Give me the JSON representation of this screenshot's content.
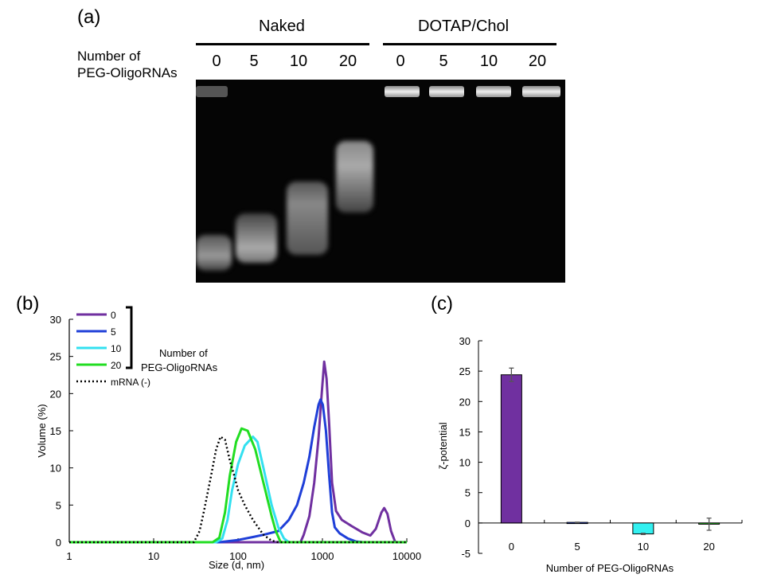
{
  "panel_a": {
    "label": "(a)",
    "group_naked": "Naked",
    "group_dotap": "DOTAP/Chol",
    "row_label_line1": "Number of",
    "row_label_line2": "PEG-OligoRNAs",
    "lanes": [
      "0",
      "5",
      "10",
      "20",
      "0",
      "5",
      "10",
      "20"
    ]
  },
  "chart_data": [
    {
      "panel": "(b)",
      "type": "line",
      "xlabel": "Size (d, nm)",
      "ylabel": "Volume (%)",
      "xscale": "log",
      "xlim": [
        1,
        10000
      ],
      "ylim": [
        0,
        30
      ],
      "xticks": [
        "1",
        "10",
        "100",
        "1000",
        "10000"
      ],
      "yticks": [
        "0",
        "5",
        "10",
        "15",
        "20",
        "25",
        "30"
      ],
      "legend_title_line1": "Number of",
      "legend_title_line2": "PEG-OligoRNAs",
      "legend_position": "top-left",
      "series": [
        {
          "name": "0",
          "color": "#7030a0",
          "style": "solid",
          "points": [
            [
              1,
              0
            ],
            [
              550,
              0
            ],
            [
              600,
              1
            ],
            [
              700,
              3.5
            ],
            [
              800,
              8
            ],
            [
              900,
              14
            ],
            [
              980,
              20
            ],
            [
              1050,
              24.3
            ],
            [
              1120,
              22
            ],
            [
              1200,
              16
            ],
            [
              1300,
              8
            ],
            [
              1450,
              4.2
            ],
            [
              1700,
              3
            ],
            [
              2200,
              2.2
            ],
            [
              3000,
              1.3
            ],
            [
              3700,
              0.9
            ],
            [
              4300,
              1.8
            ],
            [
              5000,
              4
            ],
            [
              5400,
              4.6
            ],
            [
              5900,
              3.8
            ],
            [
              6500,
              1.5
            ],
            [
              7300,
              0
            ],
            [
              10000,
              0
            ]
          ]
        },
        {
          "name": "5",
          "color": "#1f3fd8",
          "style": "solid",
          "points": [
            [
              1,
              0
            ],
            [
              60,
              0
            ],
            [
              100,
              0.3
            ],
            [
              150,
              0.7
            ],
            [
              200,
              1
            ],
            [
              300,
              1.5
            ],
            [
              400,
              3
            ],
            [
              500,
              5
            ],
            [
              600,
              8
            ],
            [
              700,
              11.5
            ],
            [
              800,
              15.5
            ],
            [
              900,
              18.5
            ],
            [
              950,
              19.2
            ],
            [
              1010,
              18.5
            ],
            [
              1100,
              15
            ],
            [
              1200,
              9
            ],
            [
              1300,
              4
            ],
            [
              1400,
              2
            ],
            [
              1600,
              1.2
            ],
            [
              2000,
              0.5
            ],
            [
              2500,
              0.1
            ],
            [
              3000,
              0
            ],
            [
              10000,
              0
            ]
          ]
        },
        {
          "name": "10",
          "color": "#33e0f0",
          "style": "solid",
          "points": [
            [
              1,
              0
            ],
            [
              55,
              0
            ],
            [
              65,
              0.5
            ],
            [
              75,
              3
            ],
            [
              85,
              7
            ],
            [
              100,
              10.5
            ],
            [
              120,
              13
            ],
            [
              150,
              14.2
            ],
            [
              170,
              13.5
            ],
            [
              200,
              10
            ],
            [
              250,
              5
            ],
            [
              300,
              2
            ],
            [
              350,
              0.5
            ],
            [
              400,
              0
            ],
            [
              10000,
              0
            ]
          ]
        },
        {
          "name": "20",
          "color": "#22dd22",
          "style": "solid",
          "points": [
            [
              1,
              0
            ],
            [
              50,
              0
            ],
            [
              60,
              0.6
            ],
            [
              70,
              4
            ],
            [
              80,
              9
            ],
            [
              95,
              13.5
            ],
            [
              110,
              15.3
            ],
            [
              130,
              15
            ],
            [
              160,
              12.5
            ],
            [
              200,
              8
            ],
            [
              250,
              3.5
            ],
            [
              280,
              1.5
            ],
            [
              320,
              0
            ],
            [
              10000,
              0
            ]
          ]
        },
        {
          "name": "mRNA (-)",
          "color": "#000000",
          "style": "dotted",
          "points": [
            [
              1,
              0
            ],
            [
              30,
              0
            ],
            [
              35,
              1.5
            ],
            [
              40,
              4.5
            ],
            [
              48,
              9
            ],
            [
              55,
              12.5
            ],
            [
              62,
              14.2
            ],
            [
              70,
              13.8
            ],
            [
              80,
              11
            ],
            [
              90,
              9
            ],
            [
              100,
              7
            ],
            [
              120,
              5
            ],
            [
              150,
              3
            ],
            [
              200,
              1
            ],
            [
              250,
              0.2
            ],
            [
              300,
              0
            ],
            [
              10000,
              0
            ]
          ]
        }
      ]
    },
    {
      "panel": "(c)",
      "type": "bar",
      "xlabel": "Number of PEG-OligoRNAs",
      "ylabel": "ζ-potential",
      "ylim": [
        -5,
        30
      ],
      "yticks": [
        "-5",
        "0",
        "5",
        "10",
        "15",
        "20",
        "25",
        "30"
      ],
      "categories": [
        "0",
        "5",
        "10",
        "20"
      ],
      "values": [
        24.4,
        0.1,
        -1.8,
        -0.2
      ],
      "errors": [
        1.1,
        0.05,
        0.1,
        1.0
      ],
      "colors": [
        "#7030a0",
        "#1f3fd8",
        "#33f0f0",
        "#22dd22"
      ]
    }
  ]
}
